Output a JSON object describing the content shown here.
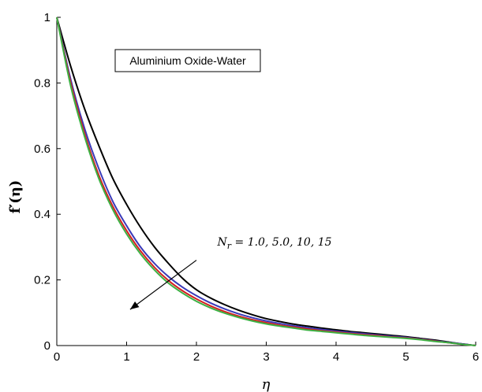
{
  "chart_data": {
    "type": "line",
    "xlabel": "η",
    "ylabel": "f′(η)",
    "xlim": [
      0,
      6
    ],
    "ylim": [
      0,
      1
    ],
    "xticks": [
      "0",
      "1",
      "2",
      "3",
      "4",
      "5",
      "6"
    ],
    "yticks": [
      "0",
      "0.2",
      "0.4",
      "0.6",
      "0.8",
      "1"
    ],
    "grid": false,
    "legend_box": "Aluminium Oxide-Water",
    "annotation": {
      "symbol": "N",
      "subscript": "r",
      "text": " = 1.0, 5.0, 10, 15",
      "arrow_from": [
        2.0,
        0.26
      ],
      "arrow_to": [
        1.05,
        0.11
      ],
      "text_at": [
        2.3,
        0.305
      ]
    },
    "series": [
      {
        "color": "#000000",
        "x": [
          0,
          0.2,
          0.4,
          0.6,
          0.8,
          1.0,
          1.2,
          1.4,
          1.6,
          1.8,
          2.0,
          2.2,
          2.4,
          2.6,
          2.8,
          3.0,
          3.2,
          3.4,
          3.6,
          3.8,
          4.0,
          4.2,
          4.4,
          4.6,
          4.8,
          5.0,
          5.2,
          5.4,
          5.6,
          5.8,
          6.0
        ],
        "y": [
          1.0,
          0.85,
          0.72,
          0.61,
          0.51,
          0.43,
          0.36,
          0.3,
          0.25,
          0.205,
          0.17,
          0.145,
          0.125,
          0.108,
          0.094,
          0.082,
          0.073,
          0.065,
          0.059,
          0.053,
          0.048,
          0.043,
          0.039,
          0.035,
          0.031,
          0.027,
          0.022,
          0.017,
          0.011,
          0.005,
          0.0
        ]
      },
      {
        "color": "#3a3ab8",
        "x": [
          0,
          0.2,
          0.4,
          0.6,
          0.8,
          1.0,
          1.2,
          1.4,
          1.6,
          1.8,
          2.0,
          2.2,
          2.4,
          2.6,
          2.8,
          3.0,
          3.2,
          3.4,
          3.6,
          3.8,
          4.0,
          4.2,
          4.4,
          4.6,
          4.8,
          5.0,
          5.2,
          5.4,
          5.6,
          5.8,
          6.0
        ],
        "y": [
          1.0,
          0.81,
          0.66,
          0.54,
          0.44,
          0.365,
          0.3,
          0.25,
          0.21,
          0.178,
          0.152,
          0.13,
          0.112,
          0.097,
          0.085,
          0.075,
          0.067,
          0.06,
          0.054,
          0.049,
          0.044,
          0.04,
          0.036,
          0.032,
          0.028,
          0.025,
          0.02,
          0.015,
          0.01,
          0.005,
          0.0
        ]
      },
      {
        "color": "#d42020",
        "x": [
          0,
          0.2,
          0.4,
          0.6,
          0.8,
          1.0,
          1.2,
          1.4,
          1.6,
          1.8,
          2.0,
          2.2,
          2.4,
          2.6,
          2.8,
          3.0,
          3.2,
          3.4,
          3.6,
          3.8,
          4.0,
          4.2,
          4.4,
          4.6,
          4.8,
          5.0,
          5.2,
          5.4,
          5.6,
          5.8,
          6.0
        ],
        "y": [
          1.0,
          0.8,
          0.645,
          0.52,
          0.425,
          0.35,
          0.288,
          0.238,
          0.198,
          0.167,
          0.142,
          0.121,
          0.104,
          0.09,
          0.079,
          0.07,
          0.062,
          0.056,
          0.05,
          0.045,
          0.041,
          0.037,
          0.033,
          0.03,
          0.026,
          0.023,
          0.019,
          0.014,
          0.009,
          0.004,
          0.0
        ]
      },
      {
        "color": "#3cb043",
        "x": [
          0,
          0.2,
          0.4,
          0.6,
          0.8,
          1.0,
          1.2,
          1.4,
          1.6,
          1.8,
          2.0,
          2.2,
          2.4,
          2.6,
          2.8,
          3.0,
          3.2,
          3.4,
          3.6,
          3.8,
          4.0,
          4.2,
          4.4,
          4.6,
          4.8,
          5.0,
          5.2,
          5.4,
          5.6,
          5.8,
          6.0
        ],
        "y": [
          1.0,
          0.79,
          0.635,
          0.51,
          0.415,
          0.34,
          0.279,
          0.23,
          0.19,
          0.16,
          0.135,
          0.115,
          0.099,
          0.086,
          0.075,
          0.066,
          0.059,
          0.053,
          0.047,
          0.043,
          0.039,
          0.035,
          0.031,
          0.028,
          0.025,
          0.022,
          0.018,
          0.013,
          0.009,
          0.004,
          0.0
        ]
      }
    ]
  }
}
